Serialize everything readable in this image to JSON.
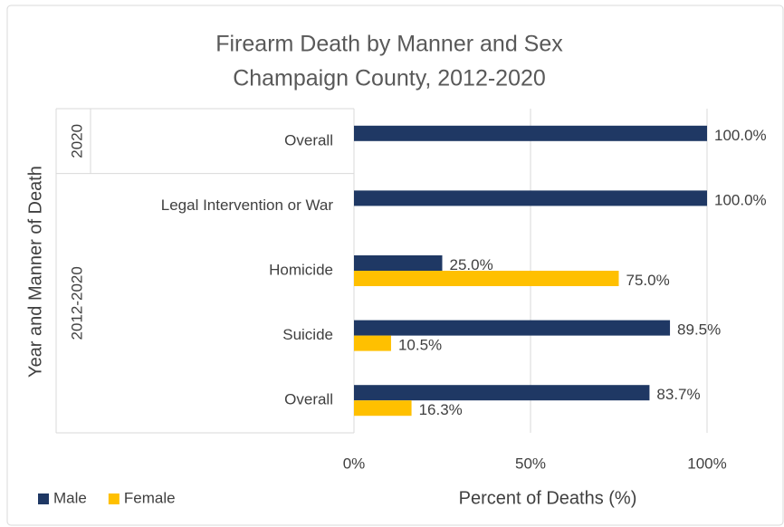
{
  "chart_data": {
    "type": "bar",
    "orientation": "horizontal",
    "title": [
      "Firearm Death by Manner and Sex",
      "Champaign County, 2012-2020"
    ],
    "x_label": "Percent of Deaths (%)",
    "y_label": "Year and Manner of Death",
    "groups": [
      {
        "name": "2020",
        "categories": [
          "Overall"
        ]
      },
      {
        "name": "2012-2020",
        "categories": [
          "Legal Intervention or War",
          "Homicide",
          "Suicide",
          "Overall"
        ]
      }
    ],
    "series": [
      {
        "name": "Male",
        "color": "#1f3864",
        "values": [
          100,
          100,
          25,
          89.5,
          83.7
        ],
        "value_labels": [
          "100.0%",
          "100.0%",
          "25.0%",
          "89.5%",
          "83.7%"
        ]
      },
      {
        "name": "Female",
        "color": "#ffc000",
        "values": [
          null,
          null,
          75,
          10.5,
          16.3
        ],
        "value_labels": [
          null,
          null,
          "75.0%",
          "10.5%",
          "16.3%"
        ]
      }
    ],
    "xlim": [
      0,
      100
    ],
    "xticks": [
      {
        "value": 0,
        "label": "0%"
      },
      {
        "value": 50,
        "label": "50%"
      },
      {
        "value": 100,
        "label": "100%"
      }
    ],
    "grid": true,
    "legend": "bottom-left"
  }
}
